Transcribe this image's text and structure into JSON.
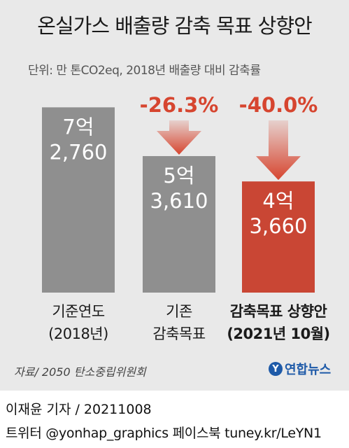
{
  "header": {
    "title": "온실가스 배출량 감축 목표 상향안",
    "unit": "단위: 만 톤CO2eq, 2018년 배출량 대비 감축률"
  },
  "colors": {
    "grey_bar": "#8f8f8f",
    "red_bar": "#c94634",
    "accent_red": "#d6452f",
    "panel": "#e9e9e9"
  },
  "chart_data": {
    "type": "bar",
    "title": "온실가스 배출량 감축 목표 상향안",
    "unit": "만 톤CO2eq",
    "categories": [
      {
        "line1": "기준연도",
        "line2": "(2018년)"
      },
      {
        "line1": "기존",
        "line2": "감축목표"
      },
      {
        "line1": "감축목표 상향안",
        "line2": "(2021년 10월)"
      }
    ],
    "values": [
      72760,
      53610,
      43660
    ],
    "value_labels": [
      {
        "line1": "7억",
        "line2": "2,760"
      },
      {
        "line1": "5억",
        "line2": "3,610"
      },
      {
        "line1": "4억",
        "line2": "3,660"
      }
    ],
    "reduction_rates": [
      "-26.3%",
      "-40.0%"
    ],
    "ylim": [
      0,
      80000
    ],
    "grid": false,
    "highlight_index": 2
  },
  "footer": {
    "source": "자료/ 2050 탄소중립위원회",
    "logo": "연합뉴스",
    "logo_mark": "Y",
    "credit": "이재윤 기자 / 20211008",
    "social": "트위터 @yonhap_graphics  페이스북 tuney.kr/LeYN1"
  }
}
